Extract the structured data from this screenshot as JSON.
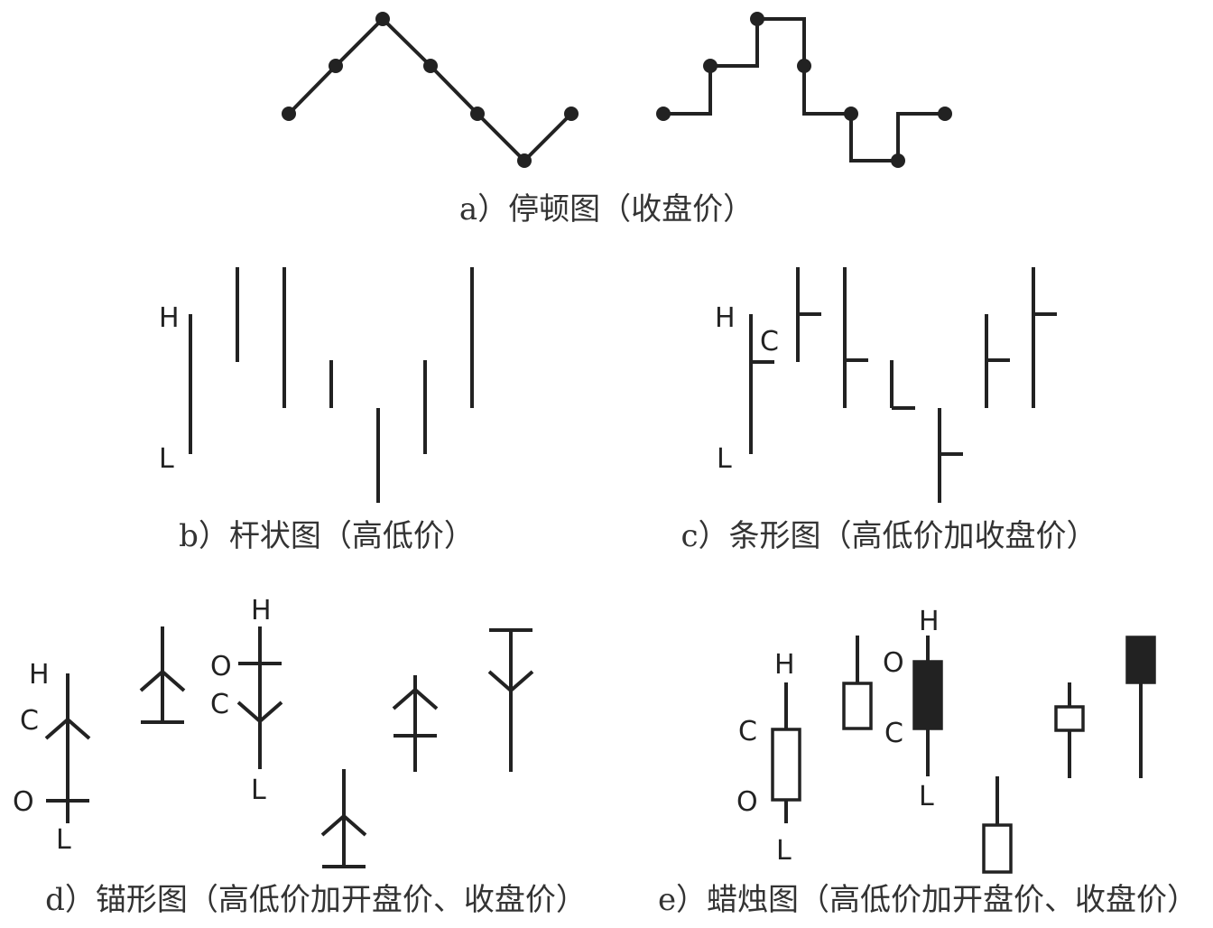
{
  "captions": {
    "a": "a）停顿图（收盘价）",
    "b": "b）杆状图（高低价）",
    "c": "c）条形图（高低价加收盘价）",
    "d": "d）锚形图（高低价加开盘价、收盘价）",
    "e": "e）蜡烛图（高低价加开盘价、收盘价）"
  },
  "labels": {
    "high": "H",
    "low": "L",
    "close": "C",
    "open": "O"
  }
}
